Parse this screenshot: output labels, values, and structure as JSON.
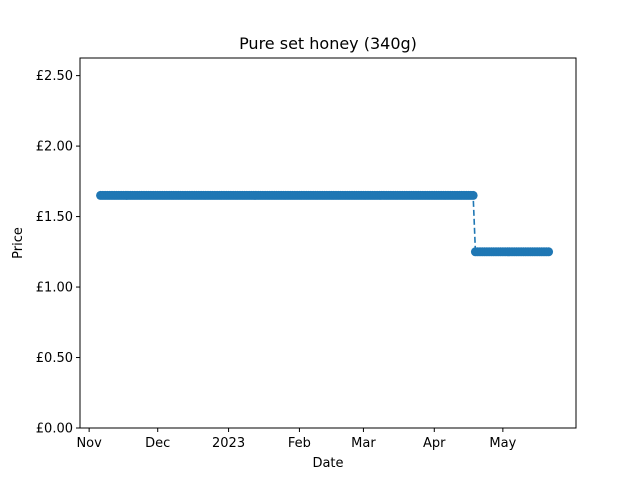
{
  "chart_data": {
    "type": "line",
    "title": "Pure set honey (340g)",
    "xlabel": "Date",
    "ylabel": "Price",
    "xlim": [
      "2022-10-28",
      "2023-06-02"
    ],
    "ylim": [
      0,
      2.625
    ],
    "x_ticks": [
      {
        "date": "2022-11-01",
        "label": "Nov"
      },
      {
        "date": "2022-12-01",
        "label": "Dec"
      },
      {
        "date": "2023-01-01",
        "label": "2023"
      },
      {
        "date": "2023-02-01",
        "label": "Feb"
      },
      {
        "date": "2023-03-01",
        "label": "Mar"
      },
      {
        "date": "2023-04-01",
        "label": "Apr"
      },
      {
        "date": "2023-05-01",
        "label": "May"
      }
    ],
    "y_ticks": [
      {
        "value": 0.0,
        "label": "£0.00"
      },
      {
        "value": 0.5,
        "label": "£0.50"
      },
      {
        "value": 1.0,
        "label": "£1.00"
      },
      {
        "value": 1.5,
        "label": "£1.50"
      },
      {
        "value": 2.0,
        "label": "£2.00"
      },
      {
        "value": 2.5,
        "label": "£2.50"
      }
    ],
    "grid": false,
    "color": "#1f77b4",
    "line_style": "dashed",
    "marker": "circle",
    "series": [
      {
        "segments": [
          {
            "start": "2022-11-06",
            "end": "2023-04-18",
            "value": 1.65
          },
          {
            "start": "2023-04-19",
            "end": "2023-05-21",
            "value": 1.25
          }
        ]
      }
    ]
  }
}
